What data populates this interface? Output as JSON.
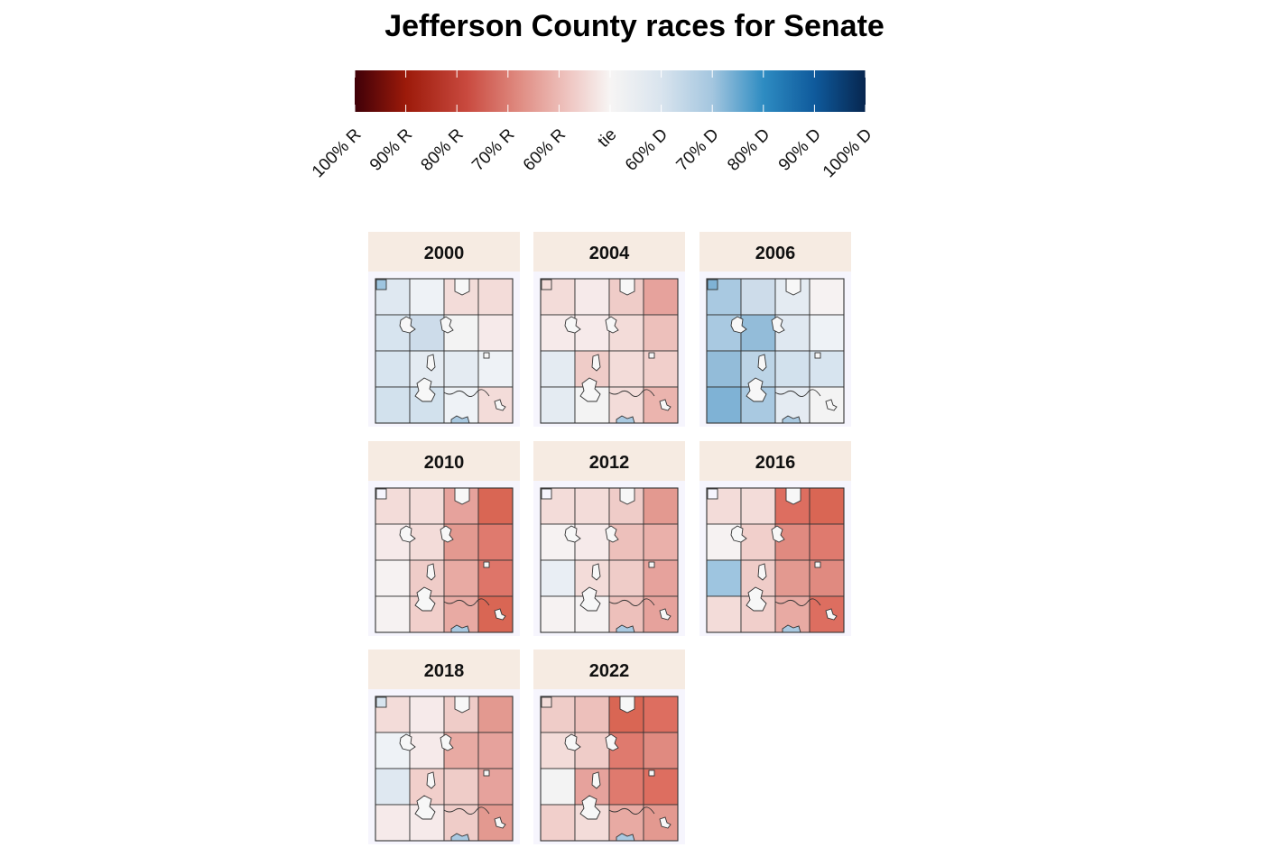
{
  "title": "Jefferson County races for Senate",
  "legend": {
    "ticks": [
      "100% R",
      "90% R",
      "80% R",
      "70% R",
      "60% R",
      "tie",
      "60% D",
      "70% D",
      "80% D",
      "90% D",
      "100% D"
    ],
    "colors": {
      "r100": "#67000d",
      "r90": "#a50f15",
      "r80": "#cb4335",
      "r70": "#e08a80",
      "r60": "#f1c5c0",
      "tie": "#f7f7f7",
      "d60": "#d7e4ef",
      "d70": "#9ec5e0",
      "d80": "#3b8fc3",
      "d90": "#1060a8",
      "d100": "#08306b"
    }
  },
  "colors": {
    "strip": "#f6ebe2",
    "panel_bg": "#f6f5fd",
    "border": "#333333"
  },
  "chart_data": {
    "type": "choropleth-map-small-multiples",
    "description_scale": "two-party margin, Republican (red) to Democrat (blue)",
    "panels": [
      {
        "year": "2000",
        "districts": {
          "nw_corner": "#9ec5e0",
          "nw": "#dfe8f1",
          "nc": "#eef2f6",
          "nc_top": "#f3dcd9",
          "ne": "#f3dcd9",
          "w2": "#d7e4ef",
          "c2": "#cddcea",
          "c2b": "#f3f3f3",
          "e2": "#f6eaea",
          "w3": "#d7e4ef",
          "c3": "#e4ebf2",
          "c3b": "#e4ebf2",
          "e3": "#eef2f6",
          "w4": "#d2e1ed",
          "c4": "#d2e1ed",
          "c4b": "#eef2f6",
          "e4": "#f3dcd9"
        }
      },
      {
        "year": "2004",
        "districts": {
          "nw_corner": "#f3dcd9",
          "nw": "#f3dcd9",
          "nc": "#f6eaea",
          "nc_top": "#efccc8",
          "ne": "#e6a29c",
          "w2": "#f6eaea",
          "c2": "#f6eaea",
          "c2b": "#f3dcd9",
          "e2": "#edc0bb",
          "w3": "#e4ebf2",
          "c3": "#efccc8",
          "c3b": "#f3dcd9",
          "e3": "#f1cfcb",
          "w4": "#e4ebf2",
          "c4": "#f3f3f3",
          "c4b": "#f3dcd9",
          "e4": "#ebb4ae"
        }
      },
      {
        "year": "2006",
        "districts": {
          "nw_corner": "#7fb2d5",
          "nw": "#a9c9e1",
          "nc": "#cddcea",
          "nc_top": "#e4ebf2",
          "ne": "#f6f2f2",
          "w2": "#a9c9e1",
          "c2": "#93bcd9",
          "c2b": "#dfe8f1",
          "e2": "#eef2f6",
          "w3": "#93bcd9",
          "c3": "#bcd4e6",
          "c3b": "#d2e1ed",
          "e3": "#d7e4ef",
          "w4": "#7fb2d5",
          "c4": "#a9c9e1",
          "c4b": "#e4ebf2",
          "e4": "#f3f3f3"
        }
      },
      {
        "year": "2010",
        "districts": {
          "nw_corner": "#f6f5fd",
          "nw": "#f3dcd9",
          "nc": "#f3dcd9",
          "nc_top": "#e6a29c",
          "ne": "#d96654",
          "w2": "#f6eaea",
          "c2": "#f3dcd9",
          "c2b": "#e39990",
          "e2": "#df7a6e",
          "w3": "#f6f2f2",
          "c3": "#efccc8",
          "c3b": "#e8aaa3",
          "e3": "#de7569",
          "w4": "#f6f2f2",
          "c4": "#f1cfcb",
          "c4b": "#e8aaa3",
          "e4": "#d96654"
        }
      },
      {
        "year": "2012",
        "districts": {
          "nw_corner": "#f6f5fd",
          "nw": "#f3dcd9",
          "nc": "#f3dcd9",
          "nc_top": "#efccc8",
          "ne": "#e39990",
          "w2": "#f6f2f2",
          "c2": "#f6eaea",
          "c2b": "#edc0bb",
          "e2": "#eab0aa",
          "w3": "#e9eef4",
          "c3": "#f3dcd9",
          "c3b": "#efccc8",
          "e3": "#e6a29c",
          "w4": "#f6f2f2",
          "c4": "#f6f2f2",
          "c4b": "#edc0bb",
          "e4": "#e6a29c"
        }
      },
      {
        "year": "2016",
        "districts": {
          "nw_corner": "#f6f5fd",
          "nw": "#f3dcd9",
          "nc": "#f3dcd9",
          "nc_top": "#dd6e60",
          "ne": "#d96654",
          "w2": "#f6f2f2",
          "c2": "#f1cfcb",
          "c2b": "#e08a80",
          "e2": "#df7a6e",
          "w3": "#9ec5e0",
          "c3": "#efccc8",
          "c3b": "#e39990",
          "e3": "#e08a80",
          "w4": "#f3dcd9",
          "c4": "#f1cfcb",
          "c4b": "#e8aaa3",
          "e4": "#dd6e60"
        }
      },
      {
        "year": "2018",
        "districts": {
          "nw_corner": "#d7e4ef",
          "nw": "#f3dcd9",
          "nc": "#f6eaea",
          "nc_top": "#efccc8",
          "ne": "#e39990",
          "w2": "#eef2f6",
          "c2": "#f6eaea",
          "c2b": "#e8aaa3",
          "e2": "#e6a29c",
          "w3": "#dfe8f1",
          "c3": "#f1cfcb",
          "c3b": "#efccc8",
          "e3": "#e6a29c",
          "w4": "#f6eaea",
          "c4": "#f6eaea",
          "c4b": "#efccc8",
          "e4": "#e39990"
        }
      },
      {
        "year": "2022",
        "districts": {
          "nw_corner": "#f3dcd9",
          "nw": "#efccc8",
          "nc": "#edc0bb",
          "nc_top": "#d96654",
          "ne": "#dd6e60",
          "w2": "#f3dcd9",
          "c2": "#efccc8",
          "c2b": "#df7a6e",
          "e2": "#e08a80",
          "w3": "#f3f3f3",
          "c3": "#e6a29c",
          "c3b": "#df7a6e",
          "e3": "#dd6e60",
          "w4": "#f1cfcb",
          "c4": "#f3dcd9",
          "c4b": "#e8aaa3",
          "e4": "#e39990"
        }
      }
    ]
  }
}
